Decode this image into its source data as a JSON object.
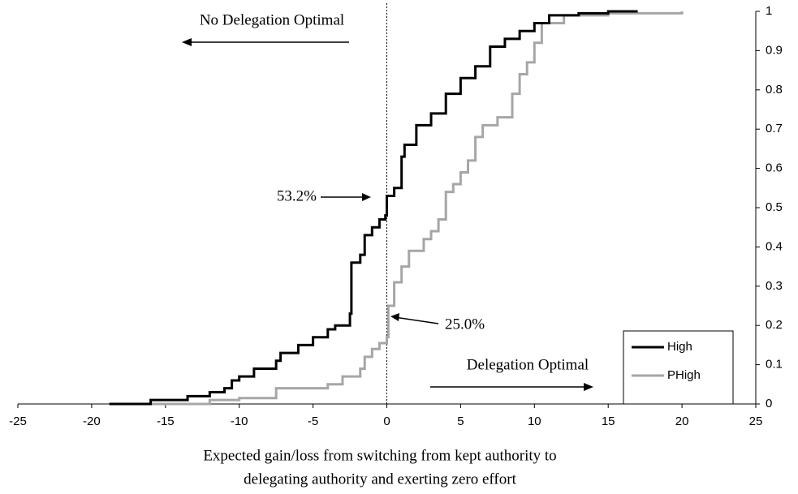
{
  "chart_data": {
    "type": "line",
    "step": "post",
    "xlabel": [
      "Expected gain/loss from switching from kept authority to",
      "delegating authority and exerting zero effort"
    ],
    "annotations": [
      "No Delegation Optimal",
      "Delegation Optimal",
      "53.2%",
      "25.0%"
    ],
    "vline": 0,
    "xlim": [
      -25,
      25
    ],
    "xticks": [
      -25,
      -20,
      -15,
      -10,
      -5,
      0,
      5,
      10,
      15,
      20,
      25
    ],
    "ylim": [
      0,
      1
    ],
    "yticks": [
      0,
      0.1,
      0.2,
      0.3,
      0.4,
      0.5,
      0.6,
      0.7,
      0.8,
      0.9,
      1
    ],
    "y_axis_side": "right",
    "grid": false,
    "legend": "lower right",
    "series": [
      {
        "name": "High",
        "color": "#000000",
        "x": [
          -18.8,
          -16,
          -13.5,
          -12,
          -11,
          -10.5,
          -10,
          -9,
          -7.5,
          -7.2,
          -6,
          -5,
          -4,
          -3.5,
          -2.5,
          -2.4,
          -1.8,
          -1.5,
          -1,
          -0.5,
          -0.1,
          0,
          0.5,
          1,
          1.2,
          2,
          3,
          4,
          5,
          6,
          7,
          8,
          9,
          10,
          11,
          13,
          15,
          17
        ],
        "values": [
          0,
          0.01,
          0.02,
          0.03,
          0.04,
          0.06,
          0.07,
          0.09,
          0.11,
          0.13,
          0.15,
          0.17,
          0.19,
          0.2,
          0.23,
          0.36,
          0.38,
          0.43,
          0.45,
          0.47,
          0.48,
          0.53,
          0.55,
          0.63,
          0.66,
          0.71,
          0.74,
          0.79,
          0.83,
          0.86,
          0.91,
          0.93,
          0.95,
          0.97,
          0.99,
          0.995,
          1,
          1
        ]
      },
      {
        "name": "PHigh",
        "color": "#a6a6a6",
        "x": [
          -16,
          -12,
          -10,
          -7.5,
          -4,
          -3,
          -1.8,
          -1.5,
          -1,
          -0.5,
          0,
          0.1,
          0.5,
          1,
          1.5,
          2.5,
          3,
          3.5,
          4,
          4.5,
          5,
          5.5,
          6,
          6.5,
          7.5,
          8.5,
          9,
          9.5,
          10,
          10.5,
          12,
          15,
          20
        ],
        "values": [
          0,
          0.01,
          0.015,
          0.04,
          0.05,
          0.07,
          0.09,
          0.12,
          0.14,
          0.155,
          0.17,
          0.25,
          0.31,
          0.35,
          0.39,
          0.42,
          0.44,
          0.47,
          0.54,
          0.56,
          0.59,
          0.62,
          0.68,
          0.71,
          0.73,
          0.79,
          0.84,
          0.87,
          0.92,
          0.97,
          0.99,
          0.995,
          1
        ]
      }
    ]
  }
}
